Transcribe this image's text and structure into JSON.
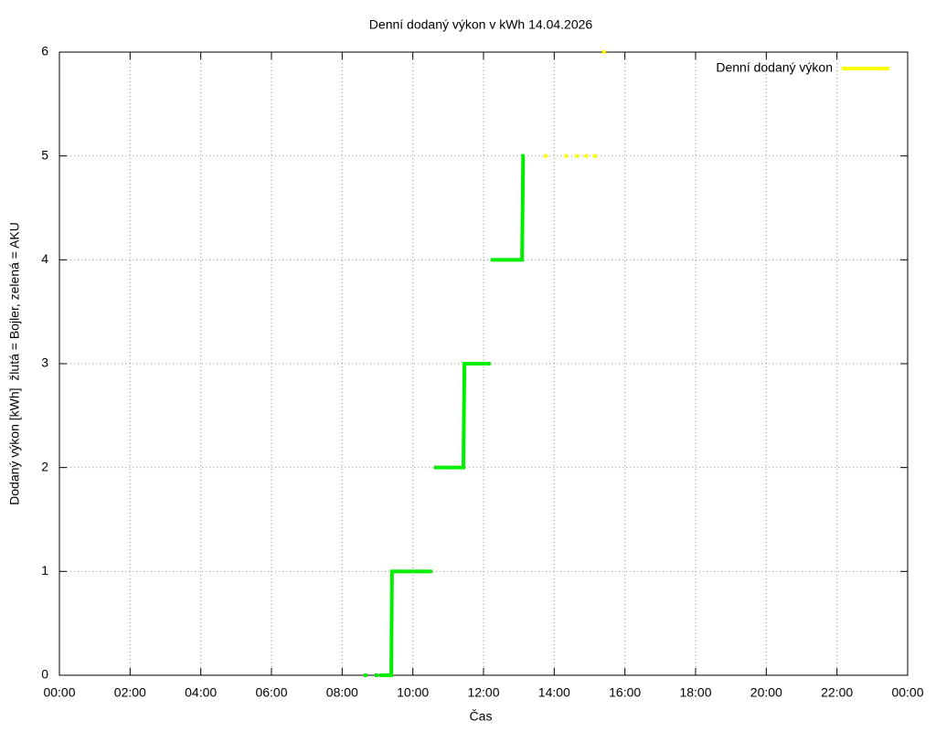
{
  "chart_data": {
    "type": "line",
    "title": "Denní dodaný výkon v kWh 14.04.2026",
    "xlabel": "Čas",
    "ylabel": "Dodaný výkon [kWh]  žlutá = Bojler, zelená = AKU",
    "xlim": [
      0,
      24
    ],
    "ylim": [
      0,
      6
    ],
    "xticks": [
      {
        "value": 0,
        "label": "00:00"
      },
      {
        "value": 2,
        "label": "02:00"
      },
      {
        "value": 4,
        "label": "04:00"
      },
      {
        "value": 6,
        "label": "06:00"
      },
      {
        "value": 8,
        "label": "08:00"
      },
      {
        "value": 10,
        "label": "10:00"
      },
      {
        "value": 12,
        "label": "12:00"
      },
      {
        "value": 14,
        "label": "14:00"
      },
      {
        "value": 16,
        "label": "16:00"
      },
      {
        "value": 18,
        "label": "18:00"
      },
      {
        "value": 20,
        "label": "20:00"
      },
      {
        "value": 22,
        "label": "22:00"
      },
      {
        "value": 24,
        "label": "00:00"
      }
    ],
    "yticks": [
      0,
      1,
      2,
      3,
      4,
      5,
      6
    ],
    "grid": true,
    "legend": "upper right",
    "series": [
      {
        "name": "Denní dodaný výkon",
        "color": "#ffff00",
        "style": "points",
        "x": [
          13.76,
          14.33,
          14.64,
          14.9,
          15.15,
          15.41
        ],
        "values": [
          5,
          5,
          5,
          5,
          5,
          6
        ]
      },
      {
        "color": "#00ee00",
        "style": "line",
        "x": [
          8.66,
          null,
          8.97,
          null,
          9.05,
          9.39,
          9.41,
          10.55,
          null,
          10.6,
          11.43,
          11.46,
          12.2,
          null,
          12.2,
          13.09,
          13.12,
          13.16
        ],
        "values": [
          0,
          null,
          0,
          null,
          0,
          0,
          1,
          1,
          null,
          2,
          2,
          3,
          3,
          null,
          4,
          4,
          5,
          5
        ]
      }
    ]
  }
}
